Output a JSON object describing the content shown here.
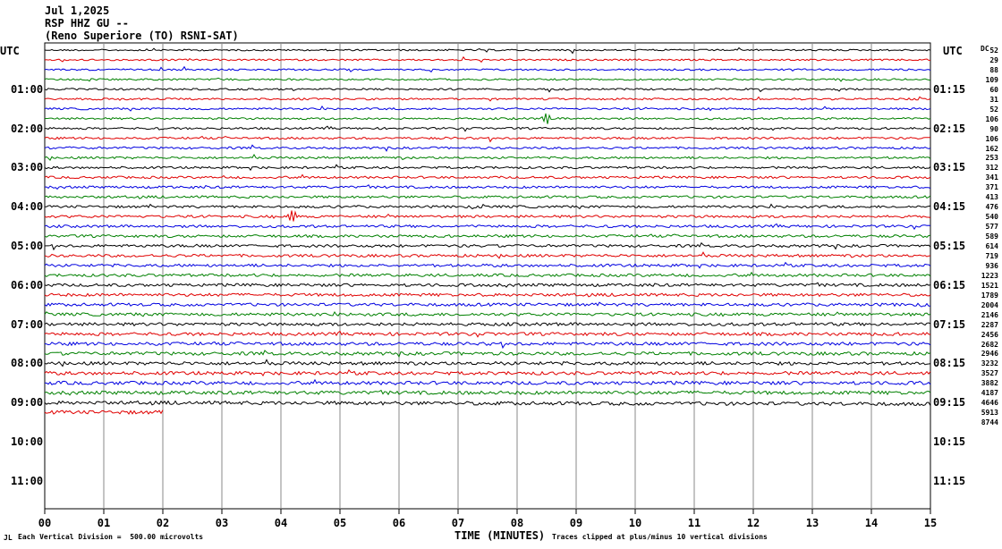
{
  "header": {
    "date": "Jul 1,2025",
    "station": "RSP HHZ GU --",
    "location": "(Reno Superiore (TO) RSNI-SAT)"
  },
  "left_axis": {
    "label": "UTC",
    "times": [
      "01:00",
      "02:00",
      "03:00",
      "04:00",
      "05:00",
      "06:00",
      "07:00",
      "08:00",
      "09:00",
      "10:00",
      "11:00"
    ]
  },
  "right_axis": {
    "label": "UTC",
    "times": [
      "01:15",
      "02:15",
      "03:15",
      "04:15",
      "05:15",
      "06:15",
      "07:15",
      "08:15",
      "09:15",
      "10:15",
      "11:15"
    ]
  },
  "dc_label": "DC",
  "footer": {
    "xlabel": "TIME (MINUTES)",
    "left_note": "Each Vertical Division =  500.00 microvolts",
    "right_note": "Traces clipped at plus/minus 10 vertical divisions"
  },
  "chart_data": {
    "type": "line",
    "title": "RSP HHZ GU --",
    "xlabel": "TIME (MINUTES)",
    "ylabel": "UTC",
    "xlim": [
      0,
      15
    ],
    "x_ticks": [
      "00",
      "01",
      "02",
      "03",
      "04",
      "05",
      "06",
      "07",
      "08",
      "09",
      "10",
      "11",
      "12",
      "13",
      "14",
      "15"
    ],
    "minutes_per_line": 15,
    "line_count_total": 48,
    "traces_recorded": 38,
    "last_trace_end_minute": 2,
    "trace_colors": [
      "#000000",
      "#e00000",
      "#0000e0",
      "#008000"
    ],
    "dc_offsets": [
      52,
      29,
      88,
      109,
      60,
      31,
      52,
      106,
      90,
      106,
      162,
      253,
      312,
      341,
      371,
      413,
      476,
      540,
      577,
      589,
      614,
      719,
      936,
      1223,
      1521,
      1789,
      2004,
      2146,
      2287,
      2456,
      2682,
      2946,
      3232,
      3527,
      3882,
      4187,
      4646,
      5913,
      8744
    ],
    "events": [
      {
        "trace": 7,
        "minute": 8.0
      },
      {
        "trace": 7,
        "minute": 8.5
      },
      {
        "trace": 16,
        "minute": 3.0
      },
      {
        "trace": 17,
        "minute": 4.2
      }
    ]
  }
}
